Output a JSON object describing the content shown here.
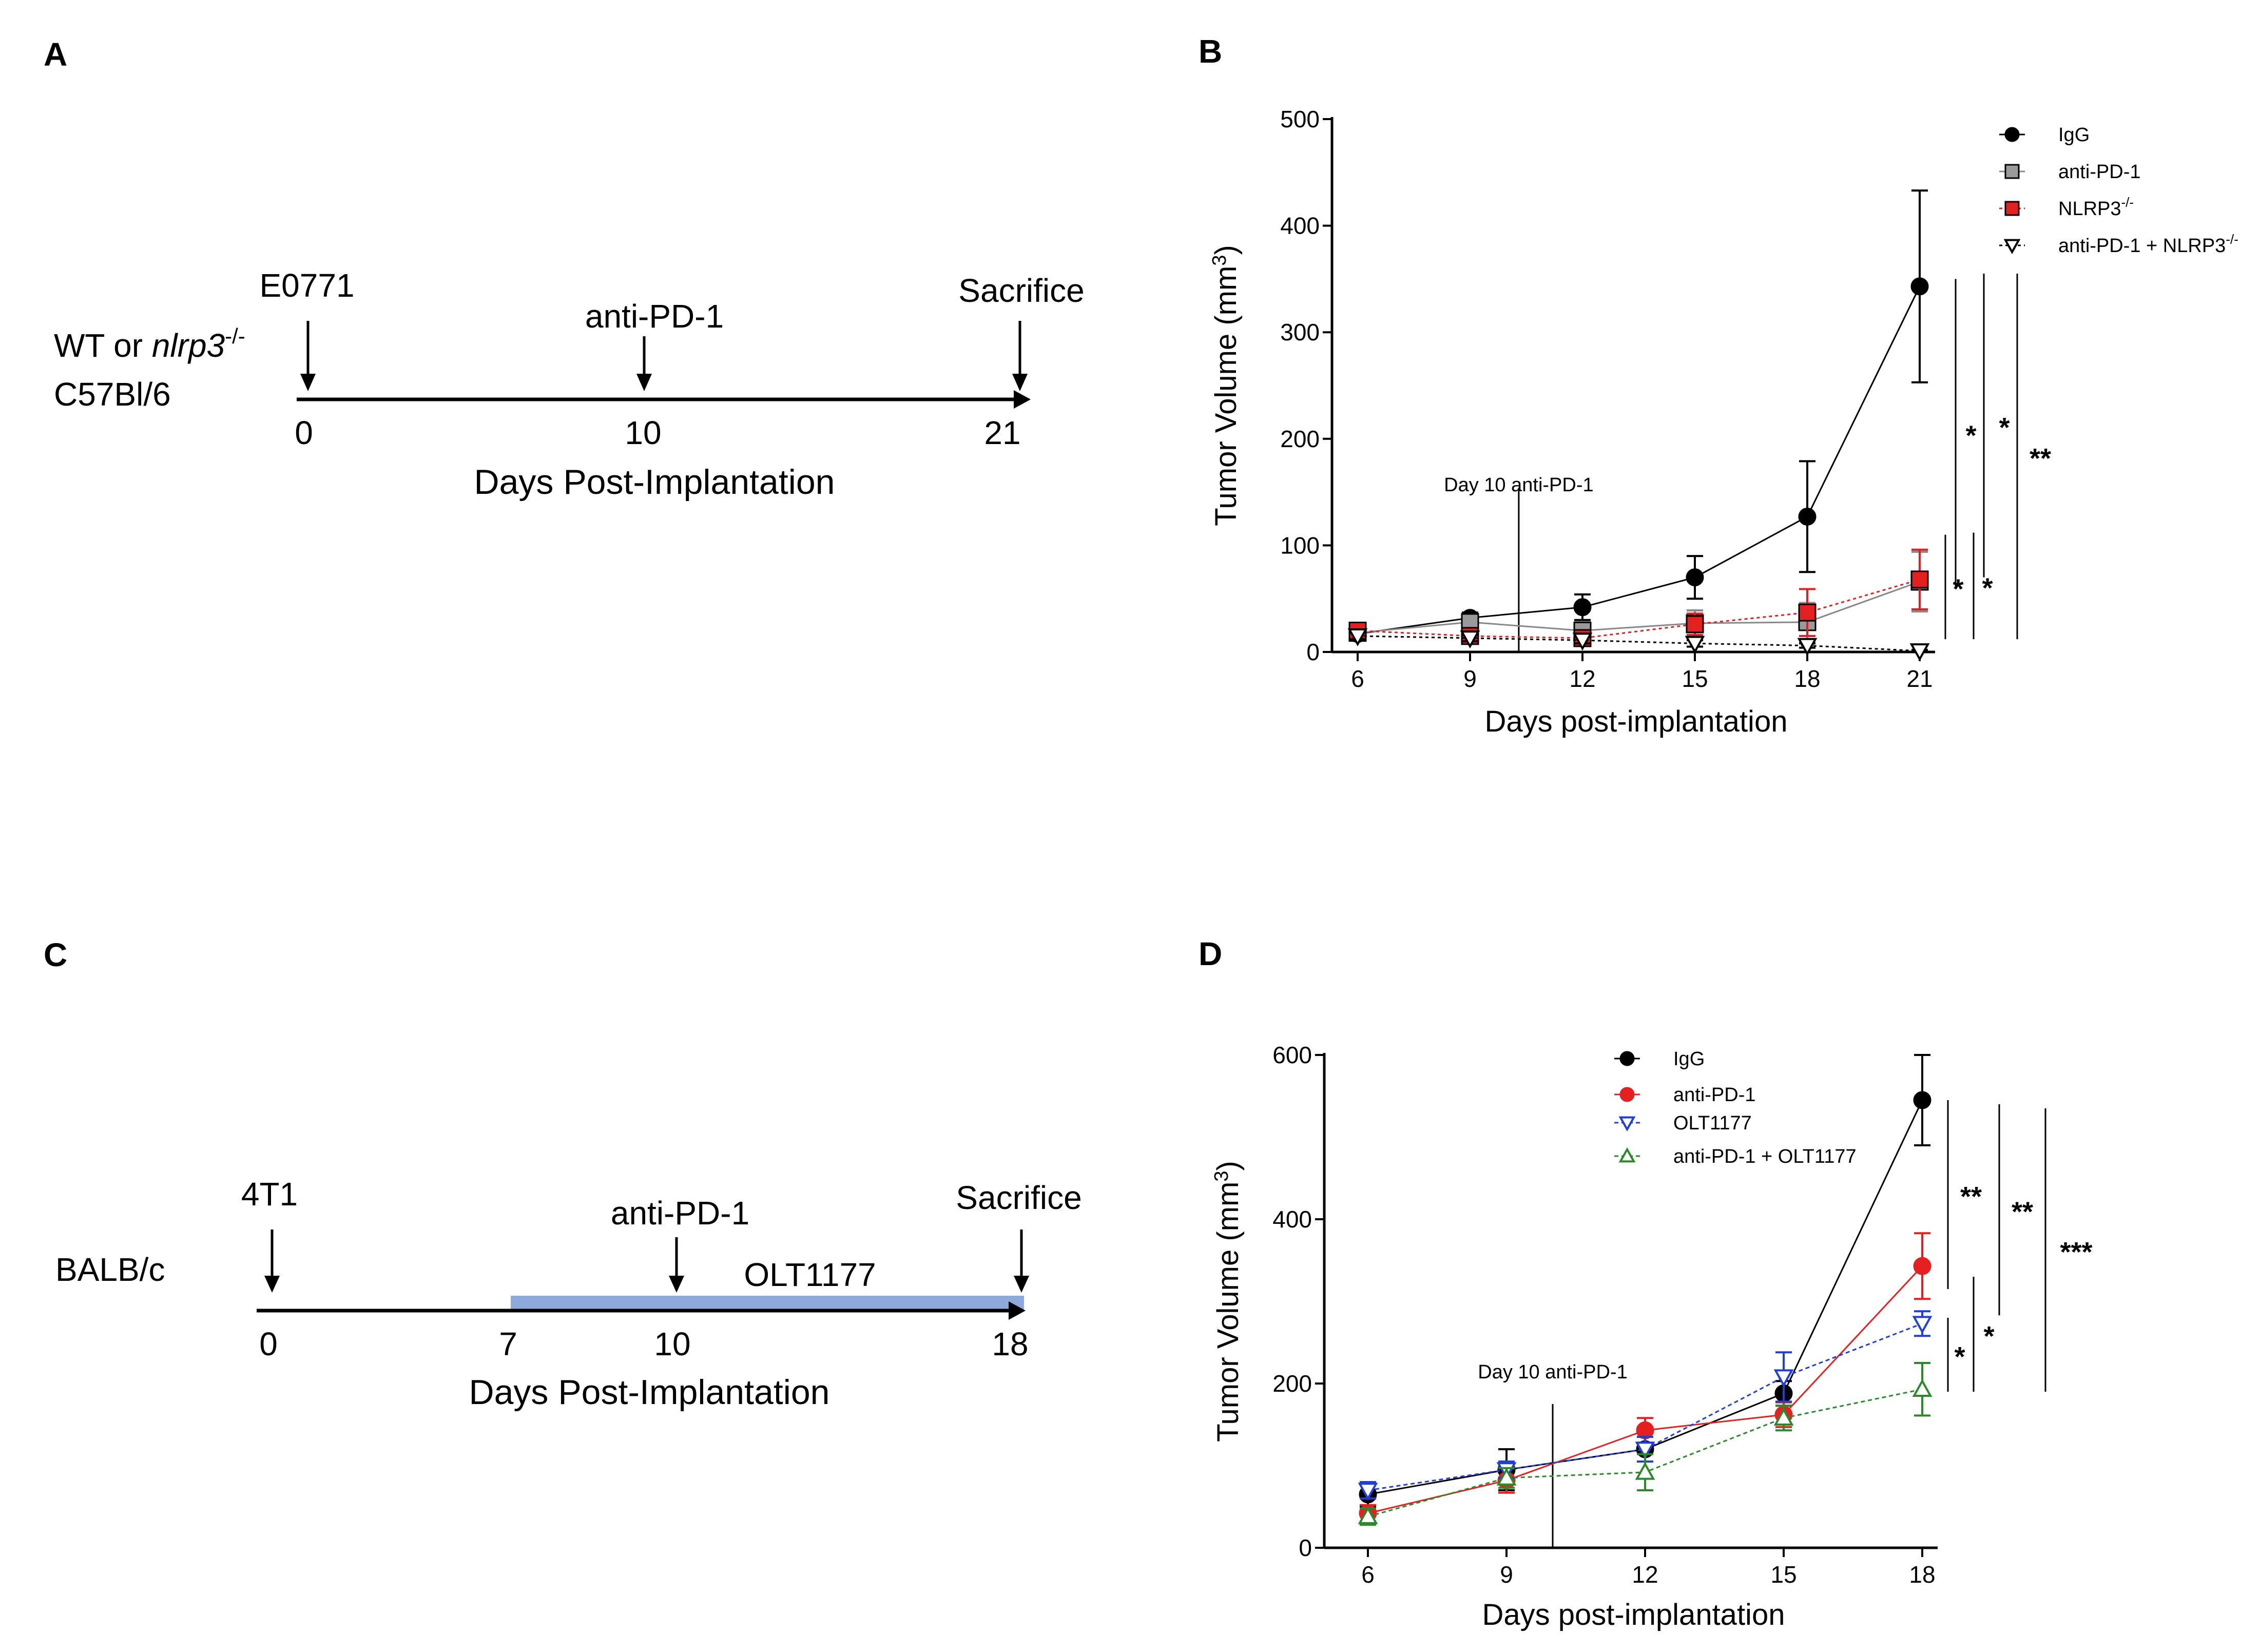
{
  "panels": {
    "A": {
      "letter": "A",
      "host_line1": "WT or ",
      "host_italic": "nlrp3",
      "host_sup": "-/-",
      "host_line2": "C57Bl/6",
      "events": [
        {
          "label": "E0771",
          "day": "0"
        },
        {
          "label": "anti-PD-1",
          "day": "10"
        },
        {
          "label": "Sacrifice",
          "day": "21"
        }
      ],
      "axis_title": "Days Post-Implantation"
    },
    "C": {
      "letter": "C",
      "host": "BALB/c",
      "events": [
        {
          "label": "4T1",
          "day": "0"
        },
        {
          "label": "anti-PD-1",
          "day": "10"
        },
        {
          "label": "Sacrifice",
          "day": "18"
        }
      ],
      "extra_day": "7",
      "bar_label": "OLT1177",
      "bar_color": "#8ea9db",
      "axis_title": "Days Post-Implantation"
    },
    "B": {
      "letter": "B"
    },
    "D": {
      "letter": "D"
    }
  },
  "chart_data": [
    {
      "id": "B",
      "type": "line",
      "xlabel": "Days post-implantation",
      "ylabel": "Tumor Volume (mm",
      "ylabel_sup": "3",
      "ylabel_end": ")",
      "x": [
        6,
        9,
        12,
        15,
        18,
        21
      ],
      "xlim": [
        6,
        21
      ],
      "ylim": [
        0,
        500
      ],
      "yticks": [
        0,
        100,
        200,
        300,
        400,
        500
      ],
      "annotation": {
        "text": "Day 10 anti-PD-1",
        "x": 10.3
      },
      "series": [
        {
          "name": "IgG",
          "marker": "circle",
          "color": "#000000",
          "fill": "#000000",
          "dash": "",
          "values": [
            17,
            32,
            42,
            70,
            127,
            343
          ],
          "err": [
            5,
            5,
            12,
            20,
            52,
            90
          ]
        },
        {
          "name": "anti-PD-1",
          "marker": "square",
          "color": "#888888",
          "fill": "#9a9a9a",
          "dash": "",
          "values": [
            18,
            28,
            20,
            27,
            28,
            66
          ],
          "err": [
            5,
            5,
            8,
            12,
            18,
            28
          ]
        },
        {
          "name": "NLRP3",
          "sup": "-/-",
          "marker": "square",
          "color": "#e02020",
          "fill": "#e52020",
          "dash": "6,6",
          "values": [
            20,
            15,
            13,
            26,
            37,
            68
          ],
          "err": [
            5,
            4,
            5,
            10,
            22,
            28
          ]
        },
        {
          "name": "anti-PD-1 + NLRP3",
          "sup": "-/-",
          "marker": "triangle-down",
          "color": "#000000",
          "fill": "#ffffff",
          "dash": "6,6",
          "values": [
            15,
            13,
            11,
            8,
            6,
            1
          ],
          "err": [
            4,
            3,
            3,
            3,
            2,
            1
          ]
        }
      ],
      "significance": [
        {
          "label": "*",
          "y1": 60,
          "y2": 350
        },
        {
          "label": "*",
          "y1": 70,
          "y2": 355
        },
        {
          "label": "**",
          "y1": 12,
          "y2": 355
        },
        {
          "label": "*",
          "y1": 12,
          "y2": 110
        },
        {
          "label": "*",
          "y1": 12,
          "y2": 112
        }
      ]
    },
    {
      "id": "D",
      "type": "line",
      "xlabel": "Days post-implantation",
      "ylabel": "Tumor Volume (mm",
      "ylabel_sup": "3",
      "ylabel_end": ")",
      "x": [
        6,
        9,
        12,
        15,
        18
      ],
      "xlim": [
        6,
        18
      ],
      "ylim": [
        0,
        600
      ],
      "yticks": [
        0,
        200,
        400,
        600
      ],
      "annotation": {
        "text": "Day 10 anti-PD-1",
        "x": 10
      },
      "series": [
        {
          "name": "IgG",
          "marker": "circle",
          "color": "#000000",
          "fill": "#000000",
          "dash": "",
          "values": [
            65,
            95,
            120,
            188,
            545
          ],
          "err": [
            15,
            25,
            15,
            15,
            55
          ]
        },
        {
          "name": "anti-PD-1",
          "marker": "circle",
          "color": "#e52020",
          "fill": "#e52020",
          "dash": "",
          "values": [
            42,
            82,
            143,
            162,
            343
          ],
          "err": [
            10,
            15,
            15,
            15,
            40
          ]
        },
        {
          "name": "OLT1177",
          "marker": "triangle-down",
          "color": "#1f3fd6",
          "fill": "#ffffff",
          "dash": "8,6",
          "values": [
            70,
            95,
            120,
            208,
            273
          ],
          "err": [
            10,
            10,
            15,
            30,
            15
          ]
        },
        {
          "name": "anti-PD-1 + OLT1177",
          "marker": "triangle-up",
          "color": "#2a8a2a",
          "fill": "#ffffff",
          "dash": "8,6",
          "values": [
            38,
            85,
            92,
            158,
            193
          ],
          "err": [
            10,
            12,
            22,
            15,
            32
          ]
        }
      ],
      "significance": [
        {
          "label": "**",
          "y1": 315,
          "y2": 545
        },
        {
          "label": "**",
          "y1": 283,
          "y2": 540
        },
        {
          "label": "***",
          "y1": 190,
          "y2": 535
        },
        {
          "label": "*",
          "y1": 190,
          "y2": 280
        },
        {
          "label": "*",
          "y1": 190,
          "y2": 330
        }
      ]
    }
  ]
}
